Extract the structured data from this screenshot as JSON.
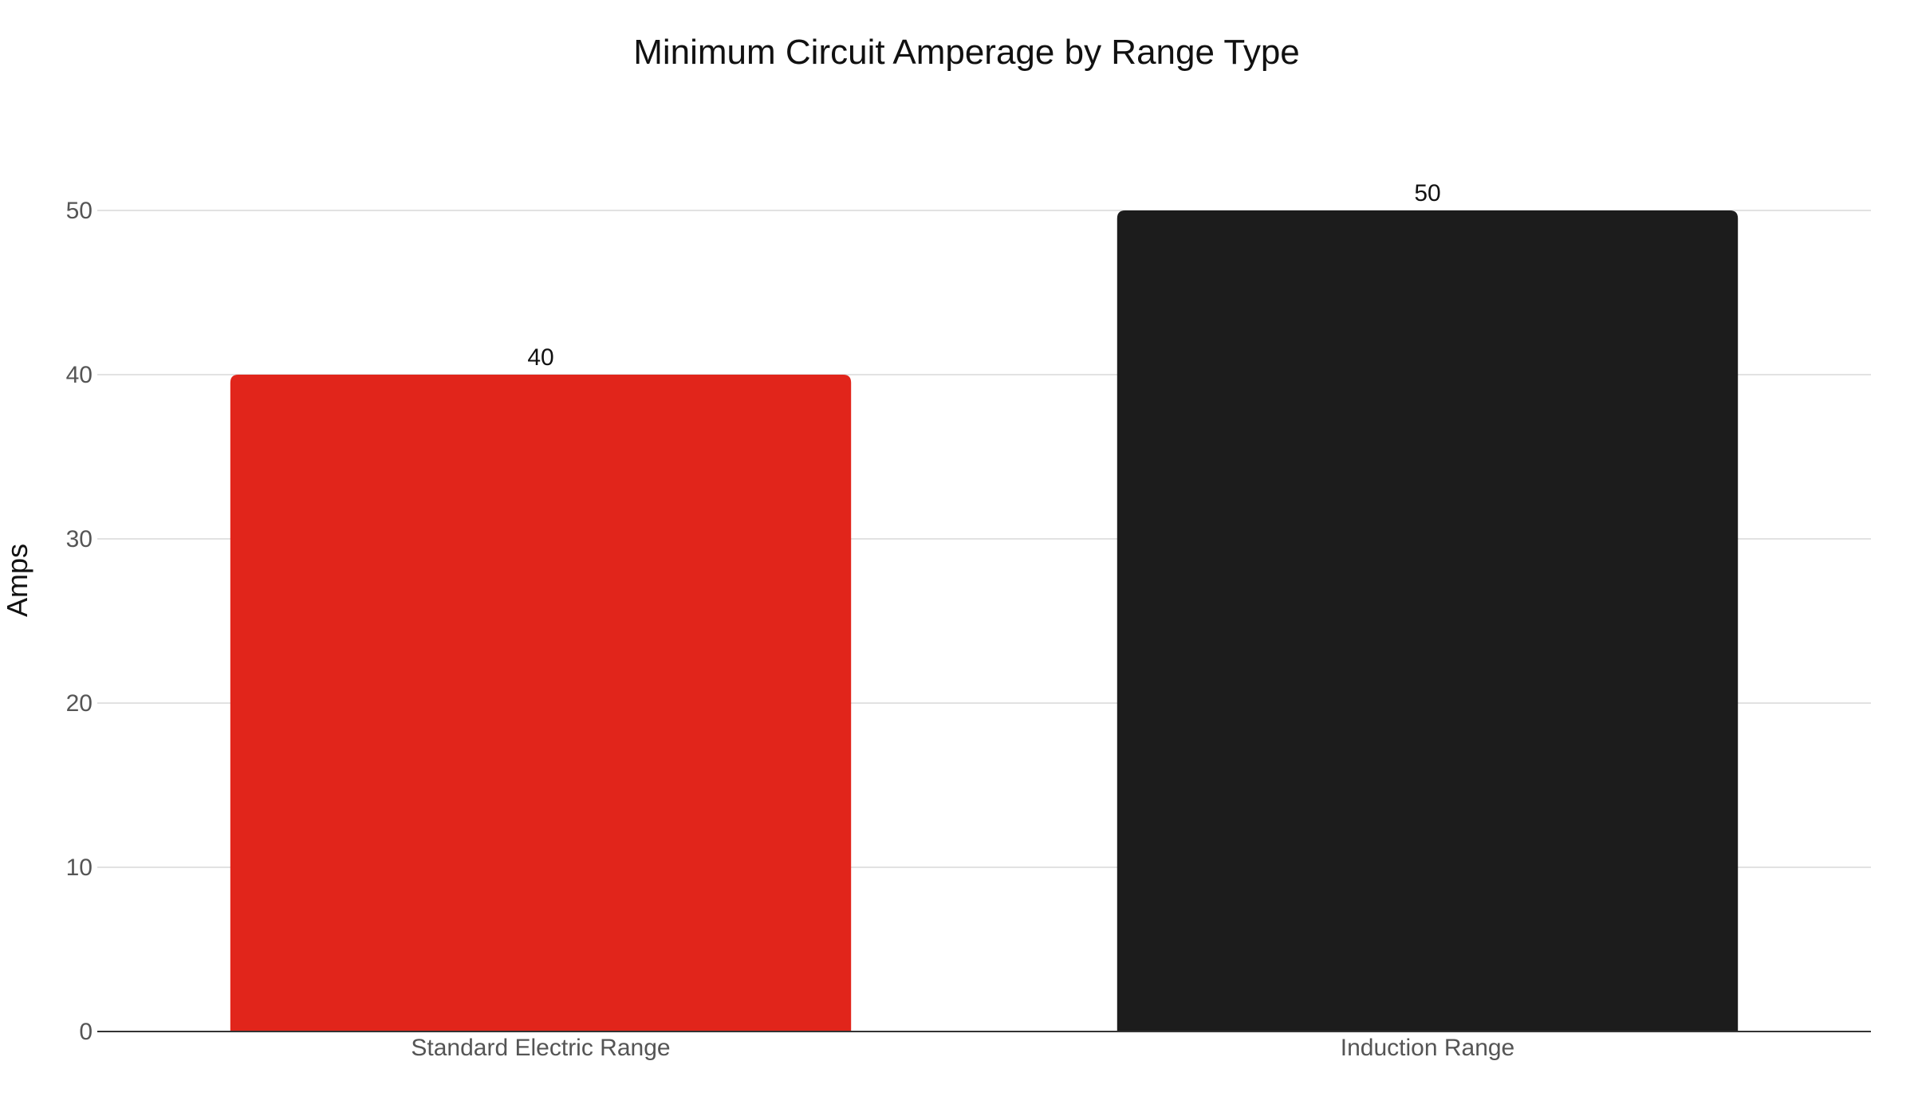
{
  "chart_data": {
    "type": "bar",
    "title": "Minimum Circuit Amperage by Range Type",
    "xlabel": "",
    "ylabel": "Amps",
    "categories": [
      "Standard Electric Range",
      "Induction Range"
    ],
    "values": [
      40,
      50
    ],
    "bar_colors": [
      "#e1251b",
      "#1c1c1c"
    ],
    "ylim": [
      0,
      50
    ],
    "yticks": [
      0,
      10,
      20,
      30,
      40,
      50
    ],
    "grid": true,
    "data_labels": [
      "40",
      "50"
    ]
  }
}
